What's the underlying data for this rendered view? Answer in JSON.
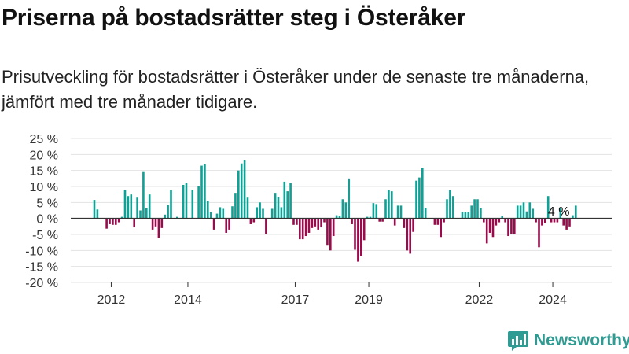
{
  "header": {
    "title": "Priserna på bostadsrätter steg i Österåker",
    "subtitle": "Prisutveckling för bostadsrätter i Österåker under de senaste tre månaderna, jämfört med tre månader tidigare."
  },
  "brand": {
    "name": "Newsworthy",
    "icon": "newsworthy-logo-icon"
  },
  "colors": {
    "positive": "#0fa195",
    "negative": "#9a0b4c",
    "grid": "#e3e3e3",
    "zero_line": "#333333",
    "brand": "#2f9c93"
  },
  "chart_data": {
    "type": "bar",
    "title": "",
    "xlabel": "",
    "ylabel": "",
    "ylim": [
      -20,
      25
    ],
    "y_ticks": [
      25,
      20,
      15,
      10,
      5,
      0,
      -5,
      -10,
      -15,
      -20
    ],
    "y_tick_labels": [
      "25 %",
      "20 %",
      "15 %",
      "10 %",
      "5 %",
      "0 %",
      "-5 %",
      "-10 %",
      "-15 %",
      "-20 %"
    ],
    "x_ticks": [
      "2012",
      "2014",
      "2017",
      "2019",
      "2022",
      "2024"
    ],
    "x_tick_positions": [
      5.5,
      30.5,
      65.5,
      89.5,
      125.5,
      149.5
    ],
    "grid": true,
    "annotation": {
      "text": "4 %",
      "index": 155
    },
    "values": [
      5.8,
      2.8,
      0,
      0,
      -3.2,
      -1.8,
      -2,
      -2,
      -1.2,
      0.5,
      9,
      7,
      7.5,
      -2.8,
      6.5,
      2.5,
      14.5,
      3.2,
      7.5,
      -3.5,
      -2.5,
      -6,
      -3,
      1.2,
      4.2,
      8.8,
      0,
      0.5,
      0,
      10.5,
      11.2,
      0,
      8.8,
      0,
      10.2,
      16.5,
      17,
      5.5,
      2,
      -3.5,
      1.5,
      3.5,
      3,
      -4.5,
      -3.5,
      3.8,
      8,
      15,
      17.2,
      18.2,
      6.5,
      -1.8,
      -1.2,
      3.5,
      5,
      3,
      -4.8,
      0,
      3,
      8,
      6.8,
      3.5,
      11.5,
      8.5,
      11.2,
      -2,
      -2,
      -6.5,
      -6.5,
      -5.5,
      -4.5,
      -3,
      -2.5,
      -3.5,
      -2.8,
      -1.2,
      -8.5,
      -10,
      -5.5,
      1,
      0.8,
      6,
      5,
      12.5,
      -1.8,
      -9.8,
      -13.5,
      -11.8,
      -6.8,
      0.5,
      0.5,
      4.8,
      4.5,
      -1,
      -1,
      6,
      9,
      8.5,
      -2.2,
      4,
      4,
      -3,
      -10,
      -11,
      -4.2,
      11.8,
      12.8,
      15.8,
      3.2,
      0,
      0,
      -2,
      -2,
      -5.8,
      -1.2,
      6,
      9,
      7,
      0,
      0,
      2,
      2,
      2,
      4,
      6,
      6,
      3.2,
      -1.2,
      -7.8,
      -4.5,
      -5.8,
      -2.2,
      -1.2,
      0.8,
      -1.2,
      -5.5,
      -5,
      -5,
      4,
      4,
      5,
      2.2,
      5,
      3,
      -1.2,
      -9,
      -2.2,
      -1.5,
      7,
      -1.2,
      -1.2,
      -1.2,
      3.2,
      -2.2,
      -3.5,
      -2.5,
      1,
      4
    ]
  }
}
